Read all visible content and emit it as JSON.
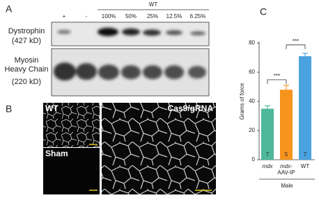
{
  "panel_a": {
    "label": "A",
    "group_label": "WT",
    "lanes": [
      "+",
      "-",
      "100%",
      "50%",
      "25%",
      "12.5%",
      "6.25%"
    ],
    "rows": [
      {
        "name": "Dystrophin",
        "size": "(427 kD)"
      },
      {
        "name": "Myosin Heavy Chain",
        "size": "(220 kD)"
      }
    ]
  },
  "panel_b": {
    "label": "B",
    "images": [
      "WT",
      "Sham",
      "Cas9/gRNA"
    ]
  },
  "chart_data": {
    "type": "bar",
    "panel_label": "C",
    "y_label": "Grams of force",
    "categories": [
      "mdx",
      "mdx- AAV-IP",
      "WT"
    ],
    "values": [
      35,
      48,
      71
    ],
    "errors": [
      2,
      3,
      2
    ],
    "colors": [
      "#4fb89a",
      "#f7941d",
      "#4aa3df"
    ],
    "sample_sizes": [
      7,
      5,
      7
    ],
    "group_label": "Male",
    "significance": [
      "***",
      "***"
    ],
    "ylim": [
      0,
      80
    ],
    "yticks": [
      0,
      20,
      40,
      60,
      80
    ]
  }
}
